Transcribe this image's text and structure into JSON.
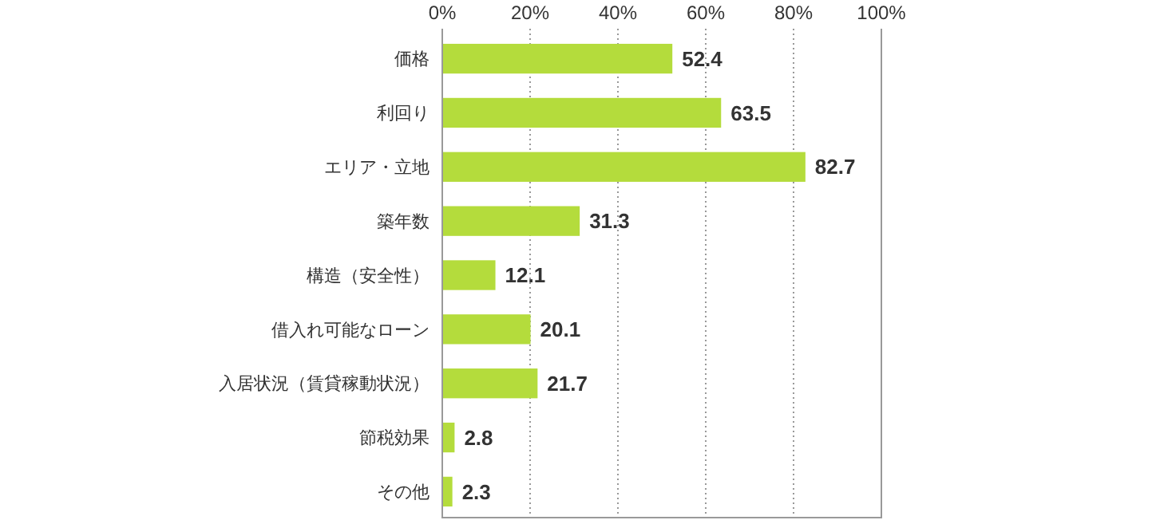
{
  "chart_data": {
    "type": "bar",
    "orientation": "horizontal",
    "categories": [
      "価格",
      "利回り",
      "エリア・立地",
      "築年数",
      "構造（安全性）",
      "借入れ可能なローン",
      "入居状況（賃貸稼動状況）",
      "節税効果",
      "その他"
    ],
    "values": [
      52.4,
      63.5,
      82.7,
      31.3,
      12.1,
      20.1,
      21.7,
      2.8,
      2.3
    ],
    "color": "#b4dc3c",
    "xlim": [
      0,
      100
    ],
    "xticks": [
      {
        "value": 0,
        "label": "0%"
      },
      {
        "value": 20,
        "label": "20%"
      },
      {
        "value": 40,
        "label": "40%"
      },
      {
        "value": 60,
        "label": "60%"
      },
      {
        "value": 80,
        "label": "80%"
      },
      {
        "value": 100,
        "label": "100%"
      }
    ],
    "grid": "x",
    "data_labels": true
  }
}
